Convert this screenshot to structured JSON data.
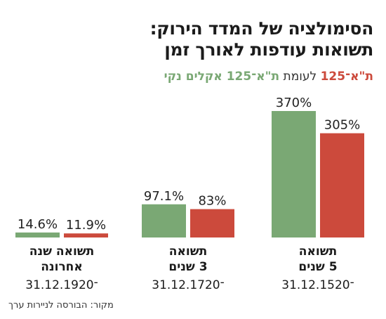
{
  "header": {
    "title_line1": "הסימולציה של המדד הירוק:",
    "title_line2": "תשואות עודפות לאורך זמן",
    "subtitle_red": "ת\"א־125",
    "subtitle_mid": " לעומת ",
    "subtitle_green": "ת\"א־125 אקלים נקי"
  },
  "colors": {
    "green": "#7aa874",
    "red": "#cc4a3c"
  },
  "chart_data": {
    "type": "bar",
    "categories": [
      {
        "lines": [
          "תשואה שנה",
          "אחרונה"
        ],
        "date": "31.12.19־20"
      },
      {
        "lines": [
          "תשואה",
          "3 שנים"
        ],
        "date": "31.12.17־20"
      },
      {
        "lines": [
          "תשואה",
          "5 שנים"
        ],
        "date": "31.12.15־20"
      }
    ],
    "series": [
      {
        "name": "ת\"א־125 אקלים נקי",
        "color": "#7aa874",
        "values": [
          14.6,
          97.1,
          370
        ],
        "labels": [
          "14.6%",
          "97.1%",
          "370%"
        ]
      },
      {
        "name": "ת\"א־125",
        "color": "#cc4a3c",
        "values": [
          11.9,
          83,
          305
        ],
        "labels": [
          "11.9%",
          "83%",
          "305%"
        ]
      }
    ]
  },
  "footer": {
    "source": "מקור: הבורסה לניירות ערך"
  }
}
